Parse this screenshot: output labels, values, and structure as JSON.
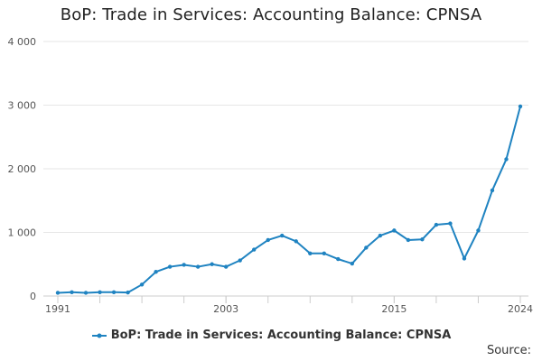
{
  "chart_data": {
    "type": "line",
    "title": "BoP: Trade in Services: Accounting Balance: CPNSA",
    "xlabel": "",
    "ylabel": "",
    "x": [
      1991,
      1992,
      1993,
      1994,
      1995,
      1996,
      1997,
      1998,
      1999,
      2000,
      2001,
      2002,
      2003,
      2004,
      2005,
      2006,
      2007,
      2008,
      2009,
      2010,
      2011,
      2012,
      2013,
      2014,
      2015,
      2016,
      2017,
      2018,
      2019,
      2020,
      2021,
      2022,
      2023,
      2024
    ],
    "series": [
      {
        "name": "BoP: Trade in Services: Accounting Balance: CPNSA",
        "values": [
          50,
          60,
          50,
          60,
          60,
          55,
          180,
          380,
          460,
          490,
          460,
          500,
          460,
          560,
          730,
          880,
          950,
          860,
          670,
          670,
          580,
          510,
          760,
          950,
          1030,
          880,
          890,
          1120,
          1140,
          590,
          1030,
          1660,
          2150,
          2980
        ],
        "color": "#1f83c1"
      }
    ],
    "xlim": [
      1991,
      2024
    ],
    "ylim": [
      0,
      4000
    ],
    "x_tick_labels": [
      "1991",
      "2003",
      "2015",
      "2024"
    ],
    "x_tick_values": [
      1991,
      2003,
      2015,
      2024
    ],
    "y_tick_labels": [
      "0",
      "1 000",
      "2 000",
      "3 000",
      "4 000"
    ],
    "y_tick_values": [
      0,
      1000,
      2000,
      3000,
      4000
    ],
    "grid": true,
    "legend_position": "bottom"
  },
  "legend": {
    "label": "BoP: Trade in Services: Accounting Balance: CPNSA"
  },
  "footer": {
    "source_label": "Source:"
  }
}
